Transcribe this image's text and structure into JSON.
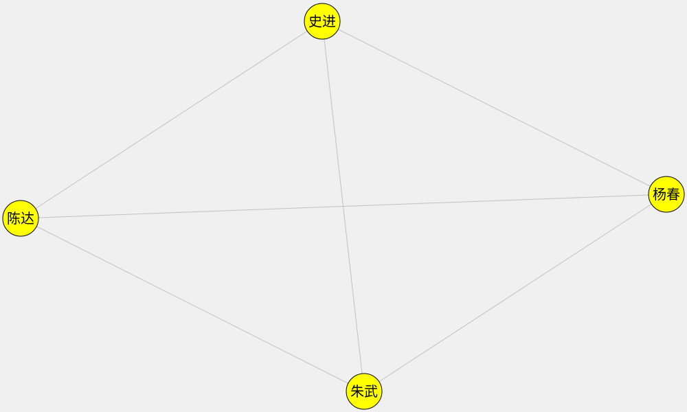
{
  "graph": {
    "nodes": [
      {
        "id": "shijin",
        "label": "史进"
      },
      {
        "id": "yangchun",
        "label": "杨春"
      },
      {
        "id": "chenda",
        "label": "陈达"
      },
      {
        "id": "zhuwu",
        "label": "朱武"
      }
    ],
    "edges": [
      {
        "source": "shijin",
        "target": "chenda"
      },
      {
        "source": "shijin",
        "target": "yangchun"
      },
      {
        "source": "shijin",
        "target": "zhuwu"
      },
      {
        "source": "chenda",
        "target": "yangchun"
      },
      {
        "source": "chenda",
        "target": "zhuwu"
      },
      {
        "source": "yangchun",
        "target": "zhuwu"
      }
    ],
    "colors": {
      "background": "#f0f0f0",
      "node_fill": "#ffff00",
      "node_stroke": "#000000",
      "edge": "#c0c0c0"
    }
  }
}
